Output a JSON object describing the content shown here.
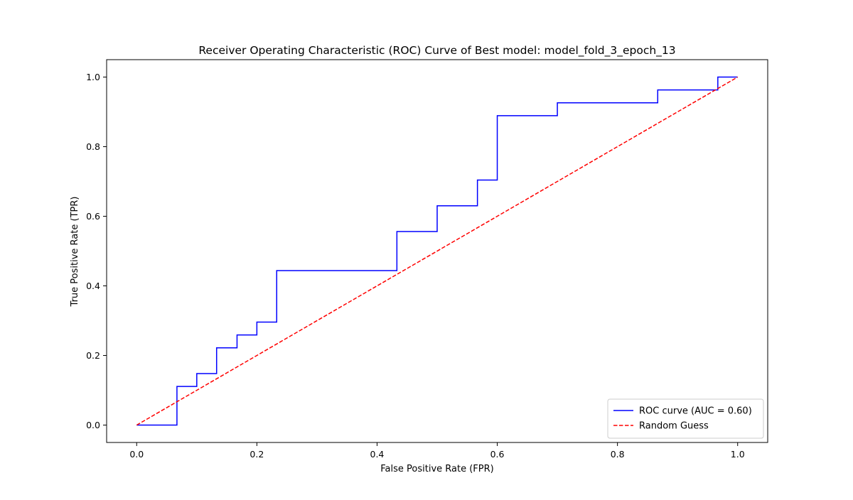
{
  "chart_data": {
    "type": "line",
    "title": "Receiver Operating Characteristic (ROC) Curve of Best model: model_fold_3_epoch_13",
    "xlabel": "False Positive Rate (FPR)",
    "ylabel": "True Positive Rate (TPR)",
    "xlim": [
      -0.05,
      1.05
    ],
    "ylim": [
      -0.05,
      1.05
    ],
    "xticks": [
      0.0,
      0.2,
      0.4,
      0.6,
      0.8,
      1.0
    ],
    "xtick_labels": [
      "0.0",
      "0.2",
      "0.4",
      "0.6",
      "0.8",
      "1.0"
    ],
    "yticks": [
      0.0,
      0.2,
      0.4,
      0.6,
      0.8,
      1.0
    ],
    "ytick_labels": [
      "0.0",
      "0.2",
      "0.4",
      "0.6",
      "0.8",
      "1.0"
    ],
    "grid": false,
    "legend_position": "lower-right",
    "series": [
      {
        "name": "ROC curve (AUC = 0.60)",
        "color": "#0000ff",
        "style": "solid",
        "x": [
          0.0,
          0.067,
          0.067,
          0.1,
          0.1,
          0.133,
          0.133,
          0.167,
          0.167,
          0.2,
          0.2,
          0.233,
          0.233,
          0.433,
          0.433,
          0.5,
          0.5,
          0.567,
          0.567,
          0.6,
          0.6,
          0.7,
          0.7,
          0.867,
          0.867,
          0.967,
          0.967,
          1.0
        ],
        "y": [
          0.0,
          0.0,
          0.111,
          0.111,
          0.148,
          0.148,
          0.222,
          0.222,
          0.259,
          0.259,
          0.296,
          0.296,
          0.444,
          0.444,
          0.556,
          0.556,
          0.63,
          0.63,
          0.704,
          0.704,
          0.889,
          0.889,
          0.926,
          0.926,
          0.963,
          0.963,
          1.0,
          1.0
        ]
      },
      {
        "name": "Random Guess",
        "color": "#ff0000",
        "style": "dashed",
        "x": [
          0.0,
          1.0
        ],
        "y": [
          0.0,
          1.0
        ]
      }
    ]
  }
}
